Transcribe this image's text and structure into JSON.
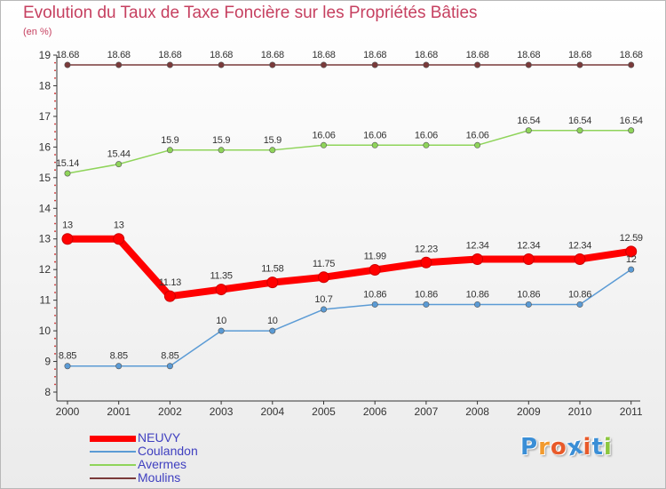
{
  "chart_data": {
    "type": "line",
    "title": "Evolution du Taux de Taxe Foncière sur les Propriétés Bâties",
    "ylabel": "(en %)",
    "xlabel": "",
    "ylim": [
      8,
      19
    ],
    "yticks": [
      "8",
      "9",
      "10",
      "11",
      "12",
      "13",
      "14",
      "15",
      "16",
      "17",
      "18",
      "19"
    ],
    "categories": [
      "2000",
      "2001",
      "2002",
      "2003",
      "2004",
      "2005",
      "2006",
      "2007",
      "2008",
      "2009",
      "2010",
      "2011"
    ],
    "grid": false,
    "legend_position": "bottom-left",
    "series": [
      {
        "name": "NEUVY",
        "color": "#ff0000",
        "values": [
          13,
          13,
          11.13,
          11.35,
          11.58,
          11.75,
          11.99,
          12.23,
          12.34,
          12.34,
          12.34,
          12.59
        ],
        "labels": [
          "13",
          "13",
          "11.13",
          "11.35",
          "11.58",
          "11.75",
          "11.99",
          "12.23",
          "12.34",
          "12.34",
          "12.34",
          "12.59"
        ]
      },
      {
        "name": "Coulandon",
        "color": "#5b9bd5",
        "values": [
          8.85,
          8.85,
          8.85,
          10,
          10,
          10.7,
          10.86,
          10.86,
          10.86,
          10.86,
          10.86,
          12
        ],
        "labels": [
          "8.85",
          "8.85",
          "8.85",
          "10",
          "10",
          "10.7",
          "10.86",
          "10.86",
          "10.86",
          "10.86",
          "10.86",
          "12"
        ]
      },
      {
        "name": "Avermes",
        "color": "#8fd45a",
        "values": [
          15.14,
          15.44,
          15.9,
          15.9,
          15.9,
          16.06,
          16.06,
          16.06,
          16.06,
          16.54,
          16.54,
          16.54
        ],
        "labels": [
          "15.14",
          "15.44",
          "15.9",
          "15.9",
          "15.9",
          "16.06",
          "16.06",
          "16.06",
          "16.06",
          "16.54",
          "16.54",
          "16.54"
        ]
      },
      {
        "name": "Moulins",
        "color": "#7a3a3a",
        "values": [
          18.68,
          18.68,
          18.68,
          18.68,
          18.68,
          18.68,
          18.68,
          18.68,
          18.68,
          18.68,
          18.68,
          18.68
        ],
        "labels": [
          "18.68",
          "18.68",
          "18.68",
          "18.68",
          "18.68",
          "18.68",
          "18.68",
          "18.68",
          "18.68",
          "18.68",
          "18.68",
          "18.68"
        ]
      }
    ]
  },
  "brand": {
    "logo_text": "Proxiti",
    "colors": [
      "#3a8ed6",
      "#f29a2e",
      "#e85a2a",
      "#3a8ed6",
      "#e85a2a",
      "#3a8ed6",
      "#8cc63f"
    ]
  }
}
